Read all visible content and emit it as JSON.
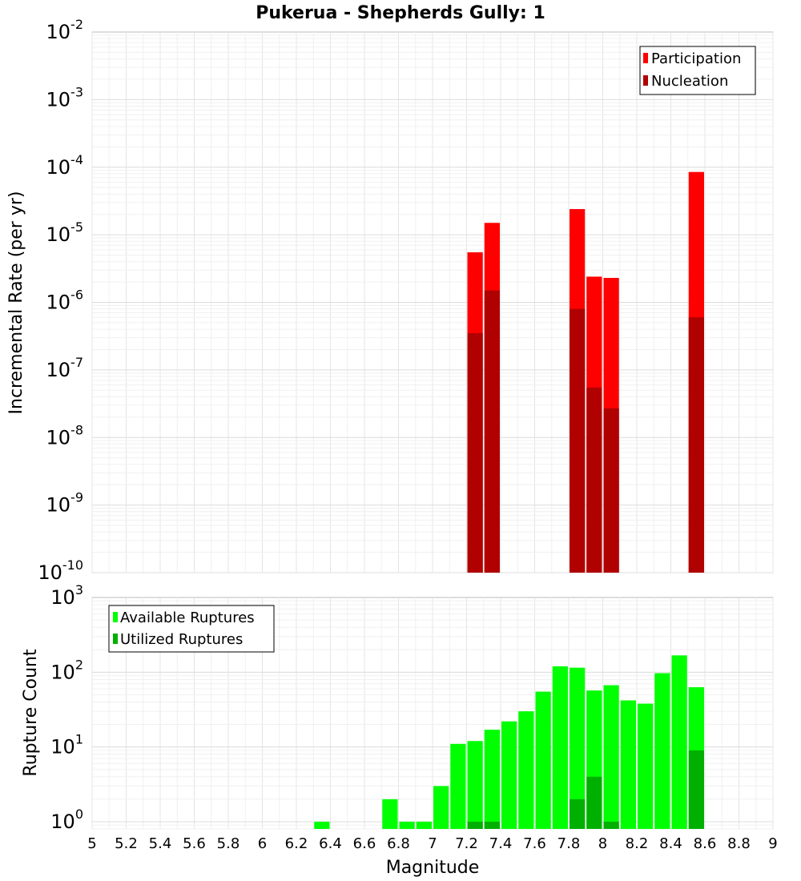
{
  "figure": {
    "title": "Pukerua - Shepherds Gully: 1",
    "xlabel": "Magnitude"
  },
  "chart_data": [
    {
      "type": "bar",
      "log_y": true,
      "ylabel": "Incremental Rate (per yr)",
      "xlim": [
        5,
        9
      ],
      "ylim": [
        1e-10,
        0.01
      ],
      "y_tick_exponents": [
        -10,
        -9,
        -8,
        -7,
        -6,
        -5,
        -4,
        -3,
        -2
      ],
      "grid": true,
      "legend_position": "top-right",
      "bin_width": 0.1,
      "series": [
        {
          "name": "Participation",
          "color": "#ff0000",
          "x": [
            7.25,
            7.35,
            7.85,
            7.95,
            8.05,
            8.55
          ],
          "values": [
            5.5e-06,
            1.5e-05,
            2.4e-05,
            2.4e-06,
            2.3e-06,
            8.5e-05
          ]
        },
        {
          "name": "Nucleation",
          "color": "#b00000",
          "x": [
            7.25,
            7.35,
            7.85,
            7.95,
            8.05,
            8.55
          ],
          "values": [
            3.5e-07,
            1.5e-06,
            8e-07,
            5.5e-08,
            2.7e-08,
            6e-07
          ]
        }
      ]
    },
    {
      "type": "bar",
      "log_y": true,
      "ylabel": "Rupture Count",
      "xlim": [
        5,
        9
      ],
      "ylim": [
        0.8,
        1000
      ],
      "y_tick_exponents": [
        0,
        1,
        2,
        3
      ],
      "x_ticks": [
        "5",
        "5.2",
        "5.4",
        "5.6",
        "5.8",
        "6",
        "6.2",
        "6.4",
        "6.6",
        "6.8",
        "7",
        "7.2",
        "7.4",
        "7.6",
        "7.8",
        "8",
        "8.2",
        "8.4",
        "8.6",
        "8.8",
        "9"
      ],
      "grid": true,
      "legend_position": "top-left",
      "bin_width": 0.1,
      "series": [
        {
          "name": "Available Ruptures",
          "color": "#00ff00",
          "x": [
            6.35,
            6.75,
            6.85,
            6.95,
            7.05,
            7.15,
            7.25,
            7.35,
            7.45,
            7.55,
            7.65,
            7.75,
            7.85,
            7.95,
            8.05,
            8.15,
            8.25,
            8.35,
            8.45,
            8.55
          ],
          "values": [
            1,
            2,
            1,
            1,
            3,
            11,
            12,
            17,
            22,
            30,
            55,
            120,
            115,
            57,
            67,
            42,
            38,
            97,
            168,
            63
          ]
        },
        {
          "name": "Utilized Ruptures",
          "color": "#00b000",
          "x": [
            7.25,
            7.35,
            7.85,
            7.95,
            8.05,
            8.55
          ],
          "values": [
            1,
            1,
            2,
            4,
            1,
            9
          ]
        }
      ]
    }
  ]
}
